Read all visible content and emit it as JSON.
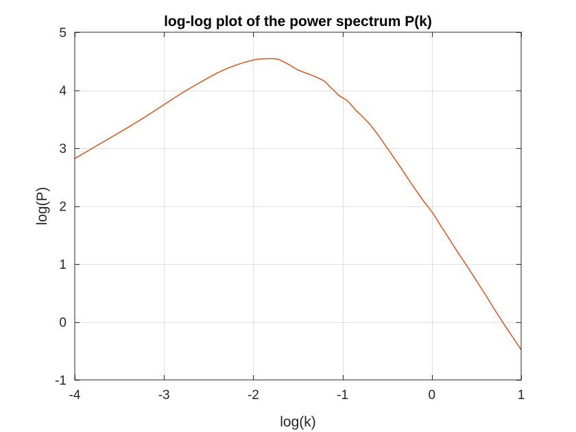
{
  "chart_data": {
    "type": "line",
    "title": "log-log plot of the power spectrum P(k)",
    "xlabel": "log(k)",
    "ylabel": "log(P)",
    "xlim": [
      -4,
      1
    ],
    "ylim": [
      -1,
      5
    ],
    "xticks": [
      -4,
      -3,
      -2,
      -1,
      0,
      1
    ],
    "yticks": [
      -1,
      0,
      1,
      2,
      3,
      4,
      5
    ],
    "xtick_labels": [
      "-4",
      "-3",
      "-2",
      "-1",
      "0",
      "1"
    ],
    "ytick_labels": [
      "-1",
      "0",
      "1",
      "2",
      "3",
      "4",
      "5"
    ],
    "grid": true,
    "series": [
      {
        "color": "#d95319",
        "x": [
          -4.0,
          -3.8,
          -3.6,
          -3.4,
          -3.2,
          -3.0,
          -2.8,
          -2.6,
          -2.4,
          -2.2,
          -2.0,
          -1.9,
          -1.8,
          -1.75,
          -1.7,
          -1.6,
          -1.5,
          -1.4,
          -1.3,
          -1.2,
          -1.15,
          -1.1,
          -1.05,
          -1.0,
          -0.95,
          -0.9,
          -0.85,
          -0.8,
          -0.75,
          -0.7,
          -0.6,
          -0.5,
          -0.4,
          -0.3,
          -0.2,
          -0.1,
          0.0,
          0.1,
          0.2,
          0.3,
          0.4,
          0.5,
          0.6,
          0.7,
          0.8,
          0.9,
          1.0
        ],
        "y": [
          2.82,
          3.0,
          3.18,
          3.36,
          3.55,
          3.75,
          3.95,
          4.13,
          4.3,
          4.43,
          4.52,
          4.54,
          4.545,
          4.54,
          4.52,
          4.44,
          4.35,
          4.29,
          4.23,
          4.15,
          4.07,
          4.0,
          3.92,
          3.87,
          3.82,
          3.74,
          3.65,
          3.58,
          3.5,
          3.42,
          3.22,
          3.0,
          2.78,
          2.55,
          2.32,
          2.1,
          1.9,
          1.66,
          1.42,
          1.18,
          0.95,
          0.71,
          0.47,
          0.22,
          -0.02,
          -0.25,
          -0.48
        ]
      }
    ]
  }
}
